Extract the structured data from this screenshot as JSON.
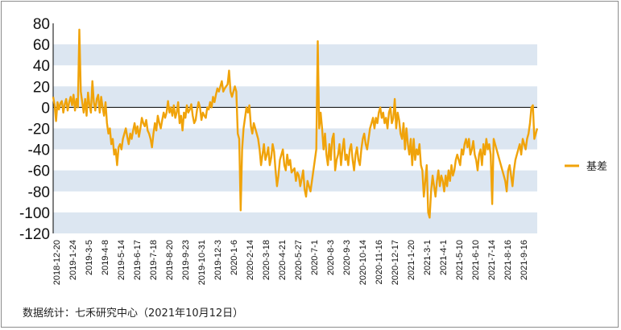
{
  "chart_data": {
    "type": "line",
    "title": "",
    "xlabel": "",
    "ylabel": "",
    "ylim": [
      -120,
      80
    ],
    "yticks": [
      80,
      60,
      40,
      20,
      0,
      -20,
      -40,
      -60,
      -80,
      -100,
      -120
    ],
    "grid": "alternating horizontal bands",
    "legend_position": "right",
    "x_tick_labels": [
      "2018-12-20",
      "2019-1-24",
      "2019-3-5",
      "2019-4-8",
      "2019-5-14",
      "2019-6-17",
      "2019-7-18",
      "2019-8-20",
      "2019-9-23",
      "2019-10-31",
      "2019-12-3",
      "2020-1-6",
      "2020-2-14",
      "2020-3-18",
      "2020-4-21",
      "2020-5-27",
      "2020-7-1",
      "2020-8-3",
      "2020-9-3",
      "2020-10-14",
      "2020-11-16",
      "2020-12-17",
      "2021-1-20",
      "2021-3-1",
      "2021-4-1",
      "2021-5-10",
      "2021-6-10",
      "2021-7-14",
      "2021-8-16",
      "2021-9-16"
    ],
    "series": [
      {
        "name": "基差",
        "color": "#f0a30a",
        "values": [
          10,
          2,
          -13,
          5,
          -2,
          4,
          6,
          -5,
          3,
          8,
          -3,
          5,
          10,
          2,
          12,
          -3,
          8,
          0,
          74,
          15,
          5,
          -5,
          8,
          -8,
          14,
          2,
          -5,
          25,
          5,
          -3,
          8,
          12,
          -5,
          10,
          0,
          -8,
          5,
          -15,
          -25,
          -20,
          -35,
          -30,
          -45,
          -40,
          -55,
          -38,
          -35,
          -40,
          -30,
          -25,
          -20,
          -28,
          -35,
          -25,
          -30,
          -22,
          -15,
          -25,
          -18,
          -28,
          -20,
          -10,
          -15,
          -18,
          -12,
          -22,
          -25,
          -30,
          -38,
          -25,
          -15,
          -22,
          -8,
          -15,
          -20,
          -12,
          -5,
          -10,
          -5,
          6,
          -5,
          0,
          -8,
          2,
          -10,
          -5,
          5,
          -15,
          -8,
          -22,
          -5,
          -10,
          2,
          -5,
          -2,
          3,
          -8,
          -15,
          -12,
          -2,
          5,
          0,
          -12,
          -5,
          -8,
          -10,
          0,
          -2,
          5,
          0,
          10,
          5,
          12,
          18,
          15,
          20,
          25,
          15,
          18,
          20,
          22,
          35,
          15,
          10,
          15,
          20,
          15,
          -25,
          -30,
          -98,
          -40,
          -20,
          -10,
          0,
          -5,
          2,
          -18,
          -25,
          -15,
          -20,
          -25,
          -30,
          -40,
          -55,
          -45,
          -35,
          -50,
          -45,
          -38,
          -55,
          -48,
          -35,
          -42,
          -60,
          -75,
          -65,
          -50,
          -45,
          -40,
          -55,
          -60,
          -45,
          -55,
          -50,
          -62,
          -60,
          -58,
          -70,
          -62,
          -65,
          -75,
          -68,
          -60,
          -78,
          -85,
          -70,
          -75,
          -80,
          -70,
          -60,
          -50,
          -40,
          63,
          -20,
          -5,
          -20,
          -40,
          -25,
          -45,
          -55,
          -35,
          -50,
          -30,
          -25,
          -60,
          -50,
          -45,
          -35,
          -55,
          -40,
          -30,
          -50,
          -45,
          -55,
          -40,
          -35,
          -50,
          -60,
          -45,
          -38,
          -50,
          -55,
          -40,
          -30,
          -25,
          -35,
          -40,
          -30,
          -20,
          -15,
          -10,
          -20,
          -10,
          -15,
          -5,
          0,
          -10,
          -5,
          -15,
          -10,
          -20,
          -5,
          0,
          -15,
          -10,
          8,
          -20,
          -5,
          -12,
          -25,
          -30,
          -15,
          -40,
          -20,
          -35,
          -45,
          -30,
          -55,
          -30,
          -50,
          -40,
          -45,
          -35,
          -55,
          -60,
          -85,
          -70,
          -55,
          -100,
          -105,
          -80,
          -65,
          -75,
          -85,
          -70,
          -60,
          -75,
          -65,
          -70,
          -80,
          -65,
          -75,
          -60,
          -70,
          -55,
          -65,
          -60,
          -50,
          -45,
          -50,
          -55,
          -40,
          -45,
          -35,
          -30,
          -38,
          -30,
          -45,
          -40,
          -32,
          -45,
          -50,
          -60,
          -45,
          -40,
          -55,
          -35,
          -45,
          -30,
          -40,
          -35,
          -45,
          -92,
          -30,
          -35,
          -40,
          -45,
          -50,
          -55,
          -60,
          -65,
          -70,
          -80,
          -60,
          -55,
          -65,
          -75,
          -60,
          -50,
          -45,
          -40,
          -35,
          -45,
          -30,
          -35,
          -40,
          -30,
          -25,
          -15,
          0,
          2,
          -30,
          -25,
          -20
        ]
      }
    ]
  },
  "source": "数据统计：七禾研究中心（2021年10月12日）"
}
